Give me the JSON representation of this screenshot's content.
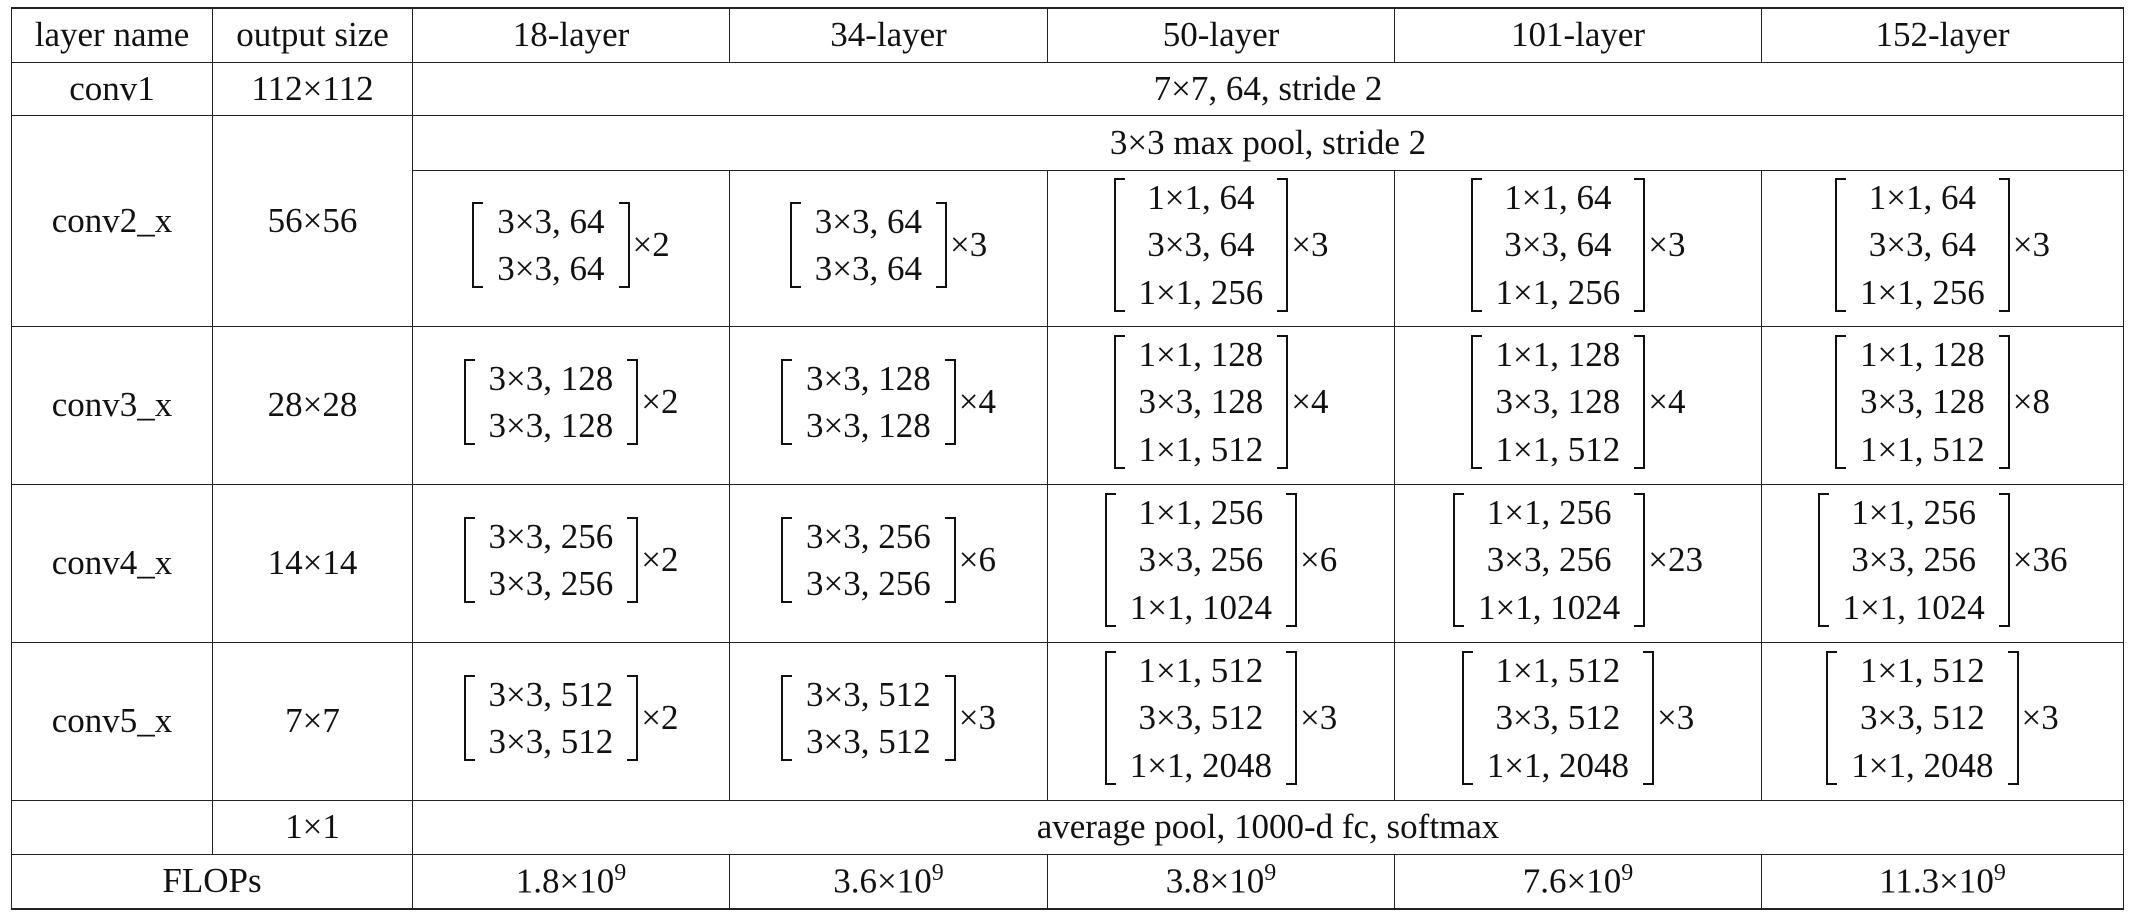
{
  "table": {
    "header": [
      "layer name",
      "output size",
      "18-layer",
      "34-layer",
      "50-layer",
      "101-layer",
      "152-layer"
    ],
    "conv1": {
      "name": "conv1",
      "output": "112×112",
      "text": "7×7, 64, stride 2"
    },
    "stages": [
      {
        "name": "conv2_x",
        "output": "56×56",
        "pool": "3×3 max pool, stride 2",
        "blocks": [
          {
            "lines": [
              "3×3, 64",
              "3×3, 64"
            ],
            "times": "×2"
          },
          {
            "lines": [
              "3×3, 64",
              "3×3, 64"
            ],
            "times": "×3"
          },
          {
            "lines": [
              "1×1, 64",
              "3×3, 64",
              "1×1, 256"
            ],
            "times": "×3"
          },
          {
            "lines": [
              "1×1, 64",
              "3×3, 64",
              "1×1, 256"
            ],
            "times": "×3"
          },
          {
            "lines": [
              "1×1, 64",
              "3×3, 64",
              "1×1, 256"
            ],
            "times": "×3"
          }
        ]
      },
      {
        "name": "conv3_x",
        "output": "28×28",
        "blocks": [
          {
            "lines": [
              "3×3, 128",
              "3×3, 128"
            ],
            "times": "×2"
          },
          {
            "lines": [
              "3×3, 128",
              "3×3, 128"
            ],
            "times": "×4"
          },
          {
            "lines": [
              "1×1, 128",
              "3×3, 128",
              "1×1, 512"
            ],
            "times": "×4"
          },
          {
            "lines": [
              "1×1, 128",
              "3×3, 128",
              "1×1, 512"
            ],
            "times": "×4"
          },
          {
            "lines": [
              "1×1, 128",
              "3×3, 128",
              "1×1, 512"
            ],
            "times": "×8"
          }
        ]
      },
      {
        "name": "conv4_x",
        "output": "14×14",
        "blocks": [
          {
            "lines": [
              "3×3, 256",
              "3×3, 256"
            ],
            "times": "×2"
          },
          {
            "lines": [
              "3×3, 256",
              "3×3, 256"
            ],
            "times": "×6"
          },
          {
            "lines": [
              "1×1, 256",
              "3×3, 256",
              "1×1, 1024"
            ],
            "times": "×6"
          },
          {
            "lines": [
              "1×1, 256",
              "3×3, 256",
              "1×1, 1024"
            ],
            "times": "×23"
          },
          {
            "lines": [
              "1×1, 256",
              "3×3, 256",
              "1×1, 1024"
            ],
            "times": "×36"
          }
        ]
      },
      {
        "name": "conv5_x",
        "output": "7×7",
        "blocks": [
          {
            "lines": [
              "3×3, 512",
              "3×3, 512"
            ],
            "times": "×2"
          },
          {
            "lines": [
              "3×3, 512",
              "3×3, 512"
            ],
            "times": "×3"
          },
          {
            "lines": [
              "1×1, 512",
              "3×3, 512",
              "1×1, 2048"
            ],
            "times": "×3"
          },
          {
            "lines": [
              "1×1, 512",
              "3×3, 512",
              "1×1, 2048"
            ],
            "times": "×3"
          },
          {
            "lines": [
              "1×1, 512",
              "3×3, 512",
              "1×1, 2048"
            ],
            "times": "×3"
          }
        ]
      }
    ],
    "final": {
      "output": "1×1",
      "text": "average pool, 1000-d fc, softmax"
    },
    "flops": {
      "label": "FLOPs",
      "values": [
        {
          "base": "1.8×10",
          "exp": "9"
        },
        {
          "base": "3.6×10",
          "exp": "9"
        },
        {
          "base": "3.8×10",
          "exp": "9"
        },
        {
          "base": "7.6×10",
          "exp": "9"
        },
        {
          "base": "11.3×10",
          "exp": "9"
        }
      ]
    }
  }
}
